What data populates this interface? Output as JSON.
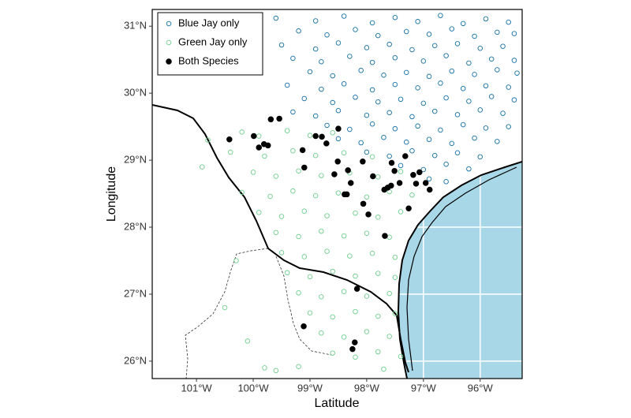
{
  "chart_data": {
    "type": "scatter",
    "x_label": "Latitude",
    "y_label": "Longitude",
    "xlim": [
      -101.78,
      -95.26
    ],
    "ylim": [
      25.74,
      31.25
    ],
    "xticks": [
      {
        "value": -101,
        "label": "101°W"
      },
      {
        "value": -100,
        "label": "100°W"
      },
      {
        "value": -99,
        "label": "99°W"
      },
      {
        "value": -98,
        "label": "98°W"
      },
      {
        "value": -97,
        "label": "97°W"
      },
      {
        "value": -96,
        "label": "96°W"
      }
    ],
    "yticks": [
      {
        "value": 26,
        "label": "26°N"
      },
      {
        "value": 27,
        "label": "27°N"
      },
      {
        "value": 28,
        "label": "28°N"
      },
      {
        "value": 29,
        "label": "29°N"
      },
      {
        "value": 30,
        "label": "30°N"
      },
      {
        "value": 31,
        "label": "31°N"
      }
    ],
    "legend": "top-left",
    "series": [
      {
        "name": "Blue Jay only",
        "color": "#1570a6",
        "marker": "open",
        "x": [
          -99.6,
          -98.9,
          -98.4,
          -97.9,
          -97.5,
          -97.1,
          -96.7,
          -96.3,
          -95.9,
          -95.5,
          -99.2,
          -98.7,
          -98.2,
          -97.8,
          -97.3,
          -96.9,
          -96.5,
          -96.1,
          -95.7,
          -95.4,
          -99.5,
          -98.9,
          -98.5,
          -98.0,
          -97.6,
          -97.2,
          -96.8,
          -96.4,
          -96.0,
          -95.6,
          -99.3,
          -98.8,
          -98.3,
          -97.9,
          -97.5,
          -97.0,
          -96.6,
          -96.2,
          -95.8,
          -95.4,
          -99.0,
          -98.6,
          -98.1,
          -97.7,
          -97.3,
          -96.9,
          -96.5,
          -96.1,
          -95.7,
          -95.35,
          -99.4,
          -98.8,
          -98.4,
          -97.9,
          -97.5,
          -97.1,
          -96.7,
          -96.3,
          -95.9,
          -95.5,
          -99.1,
          -98.6,
          -98.2,
          -97.8,
          -97.4,
          -97.0,
          -96.6,
          -96.2,
          -95.8,
          -95.4,
          -99.3,
          -98.9,
          -98.5,
          -98.0,
          -97.6,
          -97.2,
          -96.8,
          -96.4,
          -96.0,
          -95.6,
          -98.7,
          -98.3,
          -97.9,
          -97.5,
          -97.1,
          -96.7,
          -96.3,
          -95.9,
          -95.5,
          -98.5,
          -98.1,
          -97.7,
          -97.3,
          -96.9,
          -96.5,
          -96.1,
          -95.7,
          -98.0,
          -97.6,
          -97.2,
          -96.8,
          -96.4,
          -96.0,
          -97.4,
          -97.0,
          -96.6,
          -96.2,
          -96.9,
          -96.6
        ],
        "y": [
          31.12,
          31.08,
          31.15,
          31.05,
          31.13,
          31.07,
          31.16,
          31.04,
          31.11,
          31.06,
          30.93,
          30.87,
          30.95,
          30.86,
          30.92,
          30.88,
          30.96,
          30.85,
          30.91,
          30.89,
          30.72,
          30.66,
          30.75,
          30.68,
          30.73,
          30.65,
          30.71,
          30.74,
          30.67,
          30.7,
          30.52,
          30.47,
          30.55,
          30.46,
          30.53,
          30.48,
          30.56,
          30.45,
          30.51,
          30.49,
          30.32,
          30.26,
          30.34,
          30.27,
          30.31,
          30.25,
          30.33,
          30.28,
          30.35,
          30.3,
          30.12,
          30.06,
          30.14,
          30.05,
          30.13,
          30.08,
          30.15,
          30.07,
          30.11,
          30.09,
          29.92,
          29.86,
          29.94,
          29.87,
          29.91,
          29.85,
          29.93,
          29.88,
          29.95,
          29.9,
          29.72,
          29.66,
          29.74,
          29.67,
          29.71,
          29.65,
          29.73,
          29.68,
          29.75,
          29.7,
          29.52,
          29.46,
          29.54,
          29.47,
          29.51,
          29.45,
          29.53,
          29.48,
          29.5,
          29.32,
          29.26,
          29.34,
          29.27,
          29.31,
          29.25,
          29.33,
          29.28,
          29.12,
          29.06,
          29.14,
          29.07,
          29.11,
          29.05,
          28.92,
          28.86,
          28.94,
          28.87,
          28.72,
          28.68
        ]
      },
      {
        "name": "Green Jay only",
        "color": "#6fcf8e",
        "marker": "open",
        "x": [
          -100.2,
          -99.9,
          -99.4,
          -99.0,
          -98.6,
          -100.4,
          -99.8,
          -99.3,
          -98.9,
          -98.4,
          -97.9,
          -100.0,
          -99.6,
          -99.2,
          -98.8,
          -98.3,
          -97.8,
          -97.4,
          -100.2,
          -99.7,
          -99.3,
          -98.9,
          -98.5,
          -98.0,
          -97.6,
          -97.2,
          -99.9,
          -99.5,
          -99.1,
          -98.7,
          -98.2,
          -97.8,
          -97.4,
          -99.6,
          -99.2,
          -98.8,
          -98.4,
          -98.0,
          -97.6,
          -99.5,
          -99.1,
          -98.7,
          -98.3,
          -97.9,
          -97.5,
          -99.4,
          -99.0,
          -98.6,
          -98.2,
          -97.8,
          -97.5,
          -99.2,
          -98.8,
          -98.4,
          -98.0,
          -97.6,
          -99.0,
          -98.6,
          -98.2,
          -97.8,
          -97.5,
          -98.8,
          -98.4,
          -98.0,
          -97.6,
          -98.6,
          -98.2,
          -97.8,
          -97.4,
          -99.8,
          -99.6,
          -99.2,
          -97.7,
          -100.5,
          -100.1,
          -100.3,
          -100.8,
          -100.9
        ],
        "y": [
          29.42,
          29.36,
          29.44,
          29.37,
          29.41,
          29.12,
          29.06,
          29.14,
          29.07,
          29.11,
          29.05,
          28.82,
          28.76,
          28.84,
          28.77,
          28.81,
          28.75,
          28.83,
          28.52,
          28.46,
          28.54,
          28.47,
          28.51,
          28.45,
          28.53,
          28.48,
          28.22,
          28.16,
          28.24,
          28.17,
          28.21,
          28.15,
          28.23,
          27.92,
          27.86,
          27.94,
          27.87,
          27.91,
          27.85,
          27.62,
          27.56,
          27.64,
          27.57,
          27.61,
          27.55,
          27.32,
          27.26,
          27.34,
          27.27,
          27.31,
          27.25,
          27.02,
          26.96,
          27.04,
          26.97,
          27.01,
          26.72,
          26.66,
          26.74,
          26.67,
          26.71,
          26.42,
          26.36,
          26.44,
          26.37,
          26.12,
          26.06,
          26.14,
          26.07,
          25.9,
          25.86,
          25.92,
          25.88,
          26.8,
          26.3,
          27.5,
          29.3,
          28.9
        ]
      },
      {
        "name": "Both Species",
        "color": "#000000",
        "marker": "filled",
        "x": [
          -100.42,
          -99.99,
          -99.81,
          -99.9,
          -99.74,
          -99.69,
          -99.54,
          -99.13,
          -99.1,
          -98.9,
          -98.79,
          -98.71,
          -98.5,
          -98.51,
          -98.57,
          -98.33,
          -98.35,
          -98.28,
          -98.39,
          -98.07,
          -97.89,
          -98.06,
          -97.97,
          -97.69,
          -97.63,
          -97.56,
          -97.51,
          -97.57,
          -97.42,
          -97.32,
          -97.26,
          -97.18,
          -97.13,
          -97.07,
          -96.96,
          -96.89,
          -97.68,
          -98.17,
          -99.11,
          -98.21,
          -98.25
        ],
        "y": [
          29.31,
          29.36,
          29.24,
          29.19,
          29.22,
          29.61,
          29.62,
          29.15,
          28.89,
          29.36,
          29.35,
          29.25,
          29.47,
          28.98,
          28.79,
          28.85,
          28.49,
          28.66,
          28.49,
          28.98,
          28.76,
          28.35,
          28.19,
          28.56,
          28.59,
          28.96,
          28.84,
          28.62,
          28.66,
          29.06,
          28.28,
          28.78,
          28.65,
          28.82,
          28.66,
          28.56,
          27.87,
          27.08,
          26.52,
          26.28,
          26.18
        ]
      }
    ]
  }
}
